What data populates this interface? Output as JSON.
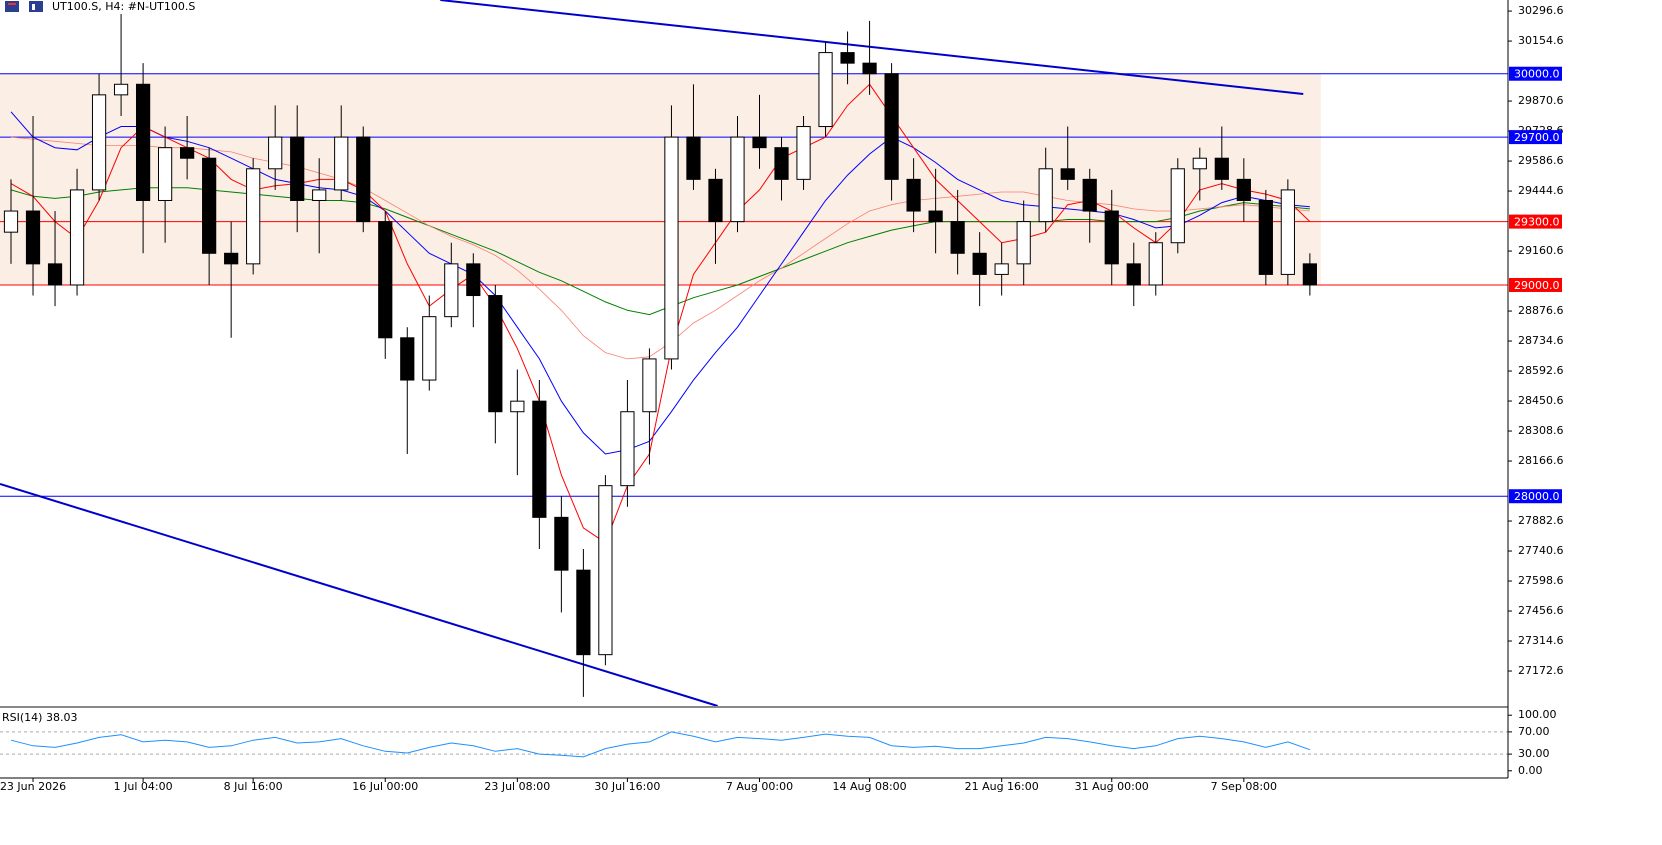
{
  "chart_data": [
    {
      "type": "candlestick",
      "title": "UT100.S, H4:  #N-UT100.S",
      "xlim": [
        -0.5,
        68
      ],
      "ylim": [
        27007,
        30349
      ],
      "yticks": [
        30296.6,
        30154.6,
        29870.6,
        29728.6,
        29586.6,
        29444.6,
        29160.6,
        28876.6,
        28734.6,
        28592.6,
        28450.6,
        28308.6,
        28166.6,
        27882.6,
        27740.6,
        27598.6,
        27456.6,
        27314.6,
        27172.6
      ],
      "zone": [
        29000,
        30000
      ],
      "zone_color": "#fbeee4",
      "levels": [
        {
          "value": 30000,
          "label": "30000.0",
          "color": "#0000ff"
        },
        {
          "value": 29700,
          "label": "29700.0",
          "color": "#0000ff"
        },
        {
          "value": 29300,
          "label": "29300.0",
          "color": "#ff0000"
        },
        {
          "value": 29000,
          "label": "29000.0",
          "color": "#ff0000"
        },
        {
          "value": 28000,
          "label": "28000.0",
          "color": "#0000ff"
        }
      ],
      "trendlines": [
        {
          "color": "#0000cc",
          "x": [
            19.5,
            58.7
          ],
          "y": [
            30349,
            29904
          ]
        },
        {
          "color": "#0000cc",
          "x": [
            -0.5,
            32.1
          ],
          "y": [
            28058,
            27007
          ]
        }
      ],
      "x": [
        0,
        1,
        2,
        3,
        4,
        5,
        6,
        7,
        8,
        9,
        10,
        11,
        12,
        13,
        14,
        15,
        16,
        17,
        18,
        19,
        20,
        21,
        22,
        23,
        24,
        25,
        26,
        27,
        28,
        29,
        30,
        31,
        32,
        33,
        34,
        35,
        36,
        37,
        38,
        39,
        40,
        41,
        42,
        43,
        44,
        45,
        46,
        47,
        48,
        49,
        50,
        51,
        52,
        53,
        54,
        55,
        56,
        57,
        58,
        59
      ],
      "open": [
        29250,
        29350,
        29100,
        29000,
        29450,
        29900,
        29950,
        29400,
        29650,
        29600,
        29150,
        29100,
        29550,
        29700,
        29400,
        29450,
        29700,
        29300,
        28750,
        28550,
        28850,
        29100,
        28950,
        28400,
        28450,
        27900,
        27650,
        27250,
        28050,
        28400,
        28650,
        29700,
        29500,
        29300,
        29700,
        29650,
        29500,
        29750,
        30100,
        30050,
        30000,
        29500,
        29350,
        29300,
        29150,
        29050,
        29100,
        29300,
        29550,
        29500,
        29350,
        29100,
        29000,
        29200,
        29550,
        29600,
        29500,
        29400,
        29050,
        29100
      ],
      "high": [
        29500,
        29800,
        29350,
        29550,
        30000,
        30300,
        30050,
        29750,
        29800,
        29650,
        29300,
        29600,
        29850,
        29850,
        29600,
        29850,
        29750,
        29350,
        28800,
        28950,
        29200,
        29150,
        29000,
        28600,
        28550,
        28000,
        27750,
        28100,
        28550,
        28700,
        29850,
        29950,
        29550,
        29800,
        29900,
        29700,
        29800,
        30150,
        30200,
        30250,
        30050,
        29600,
        29550,
        29450,
        29250,
        29200,
        29400,
        29650,
        29750,
        29550,
        29450,
        29200,
        29250,
        29600,
        29650,
        29750,
        29600,
        29450,
        29500,
        29150
      ],
      "low": [
        29100,
        28950,
        28900,
        28950,
        29400,
        29800,
        29150,
        29200,
        29500,
        29000,
        28750,
        29050,
        29450,
        29250,
        29150,
        29400,
        29250,
        28650,
        28200,
        28500,
        28800,
        28800,
        28250,
        28100,
        27750,
        27450,
        27050,
        27200,
        27950,
        28150,
        28600,
        29450,
        29100,
        29250,
        29550,
        29400,
        29450,
        29700,
        29950,
        29900,
        29400,
        29250,
        29150,
        29050,
        28900,
        28950,
        29000,
        29250,
        29450,
        29200,
        29000,
        28900,
        28950,
        29150,
        29400,
        29450,
        29300,
        29000,
        29000,
        28950
      ],
      "close": [
        29350,
        29100,
        29000,
        29450,
        29900,
        29950,
        29400,
        29650,
        29600,
        29150,
        29100,
        29550,
        29700,
        29400,
        29450,
        29700,
        29300,
        28750,
        28550,
        28850,
        29100,
        28950,
        28400,
        28450,
        27900,
        27650,
        27250,
        28050,
        28400,
        28650,
        29700,
        29500,
        29300,
        29700,
        29650,
        29500,
        29750,
        30100,
        30050,
        30000,
        29500,
        29350,
        29300,
        29150,
        29050,
        29100,
        29300,
        29550,
        29500,
        29350,
        29100,
        29000,
        29200,
        29550,
        29600,
        29500,
        29400,
        29050,
        29450,
        29000
      ],
      "series": [
        {
          "color": "#ff0000",
          "values": [
            29480,
            29420,
            29300,
            29220,
            29400,
            29650,
            29750,
            29700,
            29650,
            29600,
            29500,
            29450,
            29470,
            29480,
            29500,
            29500,
            29450,
            29350,
            29100,
            28900,
            28980,
            29050,
            28900,
            28700,
            28450,
            28100,
            27850,
            27780,
            28050,
            28200,
            28700,
            29050,
            29200,
            29350,
            29450,
            29600,
            29650,
            29700,
            29850,
            29950,
            29800,
            29650,
            29500,
            29400,
            29300,
            29200,
            29220,
            29250,
            29380,
            29400,
            29350,
            29270,
            29200,
            29300,
            29450,
            29480,
            29450,
            29430,
            29400,
            29300
          ]
        },
        {
          "color": "#0000ff",
          "values": [
            29820,
            29700,
            29650,
            29640,
            29700,
            29750,
            29750,
            29700,
            29680,
            29650,
            29600,
            29550,
            29500,
            29480,
            29460,
            29450,
            29420,
            29350,
            29250,
            29150,
            29100,
            29050,
            28950,
            28800,
            28650,
            28450,
            28300,
            28200,
            28220,
            28260,
            28400,
            28550,
            28680,
            28800,
            28950,
            29100,
            29250,
            29400,
            29520,
            29620,
            29700,
            29650,
            29580,
            29500,
            29450,
            29400,
            29380,
            29370,
            29360,
            29350,
            29340,
            29310,
            29270,
            29280,
            29330,
            29390,
            29420,
            29400,
            29380,
            29370
          ]
        },
        {
          "color": "#fa8072",
          "values": [
            29700,
            29690,
            29680,
            29670,
            29660,
            29660,
            29660,
            29650,
            29650,
            29640,
            29630,
            29600,
            29580,
            29560,
            29530,
            29500,
            29460,
            29400,
            29340,
            29280,
            29230,
            29190,
            29140,
            29070,
            28980,
            28880,
            28760,
            28680,
            28650,
            28660,
            28730,
            28820,
            28880,
            28950,
            29020,
            29080,
            29150,
            29220,
            29290,
            29350,
            29380,
            29400,
            29410,
            29420,
            29430,
            29440,
            29440,
            29420,
            29400,
            29390,
            29380,
            29360,
            29350,
            29350,
            29360,
            29370,
            29380,
            29370,
            29360,
            29350
          ]
        },
        {
          "color": "#008000",
          "values": [
            29450,
            29420,
            29410,
            29420,
            29440,
            29450,
            29460,
            29460,
            29460,
            29450,
            29440,
            29430,
            29420,
            29410,
            29400,
            29400,
            29390,
            29360,
            29320,
            29280,
            29240,
            29200,
            29160,
            29110,
            29060,
            29020,
            28970,
            28920,
            28880,
            28860,
            28900,
            28940,
            28970,
            29000,
            29040,
            29080,
            29120,
            29160,
            29200,
            29230,
            29260,
            29280,
            29300,
            29300,
            29300,
            29300,
            29300,
            29300,
            29310,
            29310,
            29300,
            29300,
            29300,
            29320,
            29350,
            29370,
            29390,
            29380,
            29370,
            29360
          ]
        }
      ]
    },
    {
      "type": "line",
      "title": "RSI(14) 38.03",
      "xlim": [
        -0.5,
        68
      ],
      "ylim": [
        -13,
        113
      ],
      "yticks": [
        {
          "value": 100,
          "label": "100.00"
        },
        {
          "value": 70,
          "label": "70.00"
        },
        {
          "value": 30,
          "label": "30.00"
        },
        {
          "value": 0,
          "label": "0.00"
        }
      ],
      "levels": [
        70,
        30
      ],
      "xticks": [
        {
          "value": 1,
          "label": "23 Jun 2026"
        },
        {
          "value": 6,
          "label": "1 Jul 04:00"
        },
        {
          "value": 11,
          "label": "8 Jul 16:00"
        },
        {
          "value": 17,
          "label": "16 Jul 00:00"
        },
        {
          "value": 23,
          "label": "23 Jul 08:00"
        },
        {
          "value": 28,
          "label": "30 Jul 16:00"
        },
        {
          "value": 34,
          "label": "7 Aug 00:00"
        },
        {
          "value": 39,
          "label": "14 Aug 08:00"
        },
        {
          "value": 45,
          "label": "21 Aug 16:00"
        },
        {
          "value": 50,
          "label": "31 Aug 00:00"
        },
        {
          "value": 56,
          "label": "7 Sep 08:00"
        }
      ],
      "x": [
        0,
        1,
        2,
        3,
        4,
        5,
        6,
        7,
        8,
        9,
        10,
        11,
        12,
        13,
        14,
        15,
        16,
        17,
        18,
        19,
        20,
        21,
        22,
        23,
        24,
        25,
        26,
        27,
        28,
        29,
        30,
        31,
        32,
        33,
        34,
        35,
        36,
        37,
        38,
        39,
        40,
        41,
        42,
        43,
        44,
        45,
        46,
        47,
        48,
        49,
        50,
        51,
        52,
        53,
        54,
        55,
        56,
        57,
        58,
        59
      ],
      "series": [
        {
          "color": "#1e90ff",
          "values": [
            55,
            45,
            42,
            50,
            60,
            65,
            52,
            55,
            52,
            42,
            45,
            55,
            60,
            50,
            52,
            58,
            45,
            35,
            32,
            42,
            50,
            45,
            35,
            40,
            30,
            28,
            25,
            40,
            48,
            52,
            70,
            62,
            52,
            60,
            58,
            55,
            60,
            66,
            62,
            60,
            45,
            42,
            44,
            40,
            40,
            45,
            50,
            60,
            58,
            52,
            45,
            40,
            45,
            58,
            62,
            58,
            52,
            42,
            52,
            38
          ]
        }
      ]
    }
  ]
}
